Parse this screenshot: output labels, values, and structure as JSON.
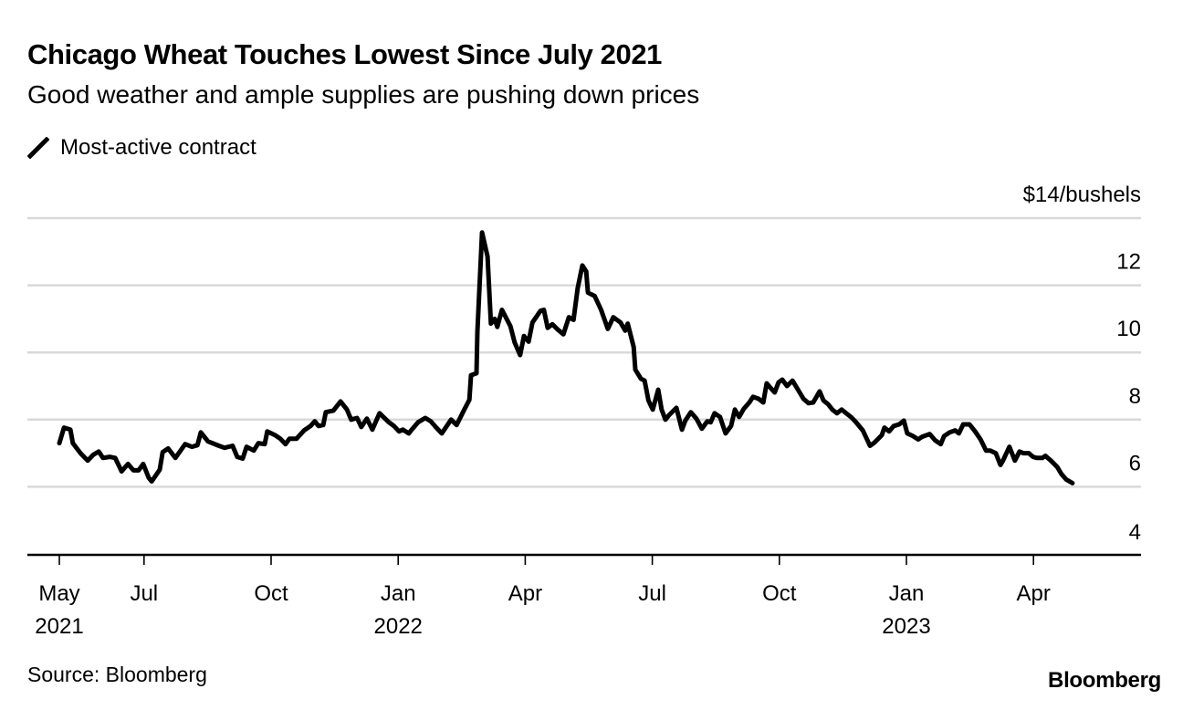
{
  "header": {
    "title": "Chicago Wheat Touches Lowest Since July 2021",
    "subtitle": "Good weather and ample supplies are pushing down prices"
  },
  "legend": {
    "items": [
      {
        "label": "Most-active contract",
        "icon": "line-swatch-icon",
        "color": "#000000"
      }
    ]
  },
  "footer": {
    "source": "Source: Bloomberg",
    "brand": "Bloomberg"
  },
  "colors": {
    "line": "#000000",
    "grid": "#d9d9d9",
    "axis": "#000000",
    "background": "#ffffff"
  },
  "chart_data": {
    "type": "line",
    "title": "Chicago Wheat Touches Lowest Since July 2021",
    "subtitle": "Good weather and ample supplies are pushing down prices",
    "xlabel": "",
    "ylabel": "$/bushels",
    "y_unit_label": "$14/bushels",
    "ylim": [
      4,
      14
    ],
    "yticks": [
      4,
      6,
      8,
      10,
      12,
      14
    ],
    "ytick_labels": [
      "4",
      "6",
      "8",
      "10",
      "12",
      "$14/bushels"
    ],
    "xlim_months": [
      -0.75,
      25.5
    ],
    "xticks": [
      {
        "month": 0,
        "label": "May",
        "year": "2021"
      },
      {
        "month": 2,
        "label": "Jul",
        "year": ""
      },
      {
        "month": 5,
        "label": "Oct",
        "year": ""
      },
      {
        "month": 8,
        "label": "Jan",
        "year": "2022"
      },
      {
        "month": 11,
        "label": "Apr",
        "year": ""
      },
      {
        "month": 14,
        "label": "Jul",
        "year": ""
      },
      {
        "month": 17,
        "label": "Oct",
        "year": ""
      },
      {
        "month": 20,
        "label": "Jan",
        "year": "2023"
      },
      {
        "month": 23,
        "label": "Apr",
        "year": ""
      }
    ],
    "grid": true,
    "legend_position": "top-left",
    "x_note": "x values are months elapsed since May 1, 2021",
    "series": [
      {
        "name": "Most-active contract",
        "x": [
          0.0,
          0.11,
          0.26,
          0.32,
          0.5,
          0.67,
          0.8,
          0.93,
          1.03,
          1.19,
          1.32,
          1.47,
          1.62,
          1.75,
          1.87,
          1.98,
          2.11,
          2.18,
          2.37,
          2.44,
          2.57,
          2.74,
          2.97,
          3.13,
          3.26,
          3.34,
          3.51,
          3.77,
          3.9,
          4.09,
          4.2,
          4.33,
          4.42,
          4.59,
          4.7,
          4.85,
          4.91,
          5.09,
          5.22,
          5.34,
          5.43,
          5.6,
          5.78,
          5.93,
          6.03,
          6.12,
          6.23,
          6.29,
          6.47,
          6.64,
          6.79,
          6.89,
          7.03,
          7.13,
          7.26,
          7.39,
          7.56,
          7.78,
          7.9,
          8.02,
          8.11,
          8.25,
          8.34,
          8.47,
          8.64,
          8.77,
          8.9,
          9.03,
          9.25,
          9.38,
          9.55,
          9.68,
          9.72,
          9.85,
          9.87,
          9.98,
          10.11,
          10.19,
          10.28,
          10.34,
          10.45,
          10.56,
          10.65,
          10.75,
          10.88,
          10.97,
          11.08,
          11.17,
          11.36,
          11.44,
          11.53,
          11.64,
          11.77,
          11.9,
          12.03,
          12.14,
          12.24,
          12.35,
          12.44,
          12.48,
          12.64,
          12.79,
          12.95,
          13.08,
          13.25,
          13.36,
          13.42,
          13.56,
          13.6,
          13.73,
          13.82,
          13.91,
          14.01,
          14.14,
          14.22,
          14.31,
          14.4,
          14.57,
          14.7,
          14.78,
          14.91,
          15.04,
          15.17,
          15.3,
          15.38,
          15.47,
          15.6,
          15.73,
          15.86,
          15.95,
          16.05,
          16.16,
          16.29,
          16.38,
          16.51,
          16.62,
          16.7,
          16.83,
          16.89,
          16.98,
          17.07,
          17.18,
          17.31,
          17.44,
          17.57,
          17.69,
          17.8,
          17.95,
          18.04,
          18.15,
          18.25,
          18.36,
          18.47,
          18.69,
          18.79,
          18.97,
          19.14,
          19.25,
          19.42,
          19.48,
          19.59,
          19.7,
          19.83,
          19.94,
          20.02,
          20.15,
          20.28,
          20.37,
          20.55,
          20.68,
          20.81,
          20.89,
          21.02,
          21.15,
          21.24,
          21.34,
          21.49,
          21.62,
          21.75,
          21.88,
          21.98,
          22.11,
          22.22,
          22.28,
          22.43,
          22.56,
          22.67,
          22.76,
          22.89,
          22.99,
          23.08,
          23.21,
          23.28,
          23.41,
          23.56,
          23.66,
          23.77,
          23.92
        ],
        "y": [
          7.3,
          7.76,
          7.7,
          7.3,
          7.0,
          6.78,
          6.95,
          7.05,
          6.86,
          6.89,
          6.86,
          6.46,
          6.68,
          6.49,
          6.49,
          6.68,
          6.27,
          6.16,
          6.51,
          7.03,
          7.14,
          6.86,
          7.27,
          7.19,
          7.24,
          7.62,
          7.35,
          7.22,
          7.16,
          7.22,
          6.89,
          6.84,
          7.19,
          7.08,
          7.3,
          7.27,
          7.65,
          7.54,
          7.43,
          7.27,
          7.43,
          7.43,
          7.68,
          7.81,
          7.95,
          7.81,
          7.84,
          8.22,
          8.27,
          8.54,
          8.3,
          8.0,
          8.05,
          7.78,
          8.03,
          7.7,
          8.19,
          7.92,
          7.81,
          7.65,
          7.7,
          7.59,
          7.73,
          7.92,
          8.05,
          7.95,
          7.76,
          7.59,
          8.0,
          7.84,
          8.27,
          8.59,
          9.32,
          9.38,
          10.62,
          13.57,
          12.86,
          10.86,
          11.0,
          10.76,
          11.27,
          11.0,
          10.78,
          10.3,
          9.92,
          10.49,
          10.32,
          10.89,
          11.24,
          11.27,
          10.73,
          10.84,
          10.68,
          10.54,
          11.05,
          10.97,
          11.92,
          12.59,
          12.41,
          11.78,
          11.68,
          11.27,
          10.7,
          11.05,
          10.89,
          10.65,
          10.86,
          10.16,
          9.49,
          9.22,
          9.16,
          8.57,
          8.3,
          8.89,
          8.3,
          8.0,
          8.14,
          8.35,
          7.7,
          7.97,
          8.22,
          8.03,
          7.73,
          7.95,
          7.92,
          8.19,
          8.08,
          7.59,
          7.81,
          8.3,
          8.08,
          8.32,
          8.51,
          8.68,
          8.62,
          8.51,
          9.08,
          8.89,
          8.81,
          9.11,
          9.19,
          9.0,
          9.16,
          8.89,
          8.62,
          8.49,
          8.51,
          8.84,
          8.57,
          8.46,
          8.3,
          8.19,
          8.3,
          8.08,
          7.95,
          7.68,
          7.22,
          7.32,
          7.54,
          7.76,
          7.65,
          7.81,
          7.86,
          7.97,
          7.59,
          7.51,
          7.41,
          7.49,
          7.57,
          7.38,
          7.27,
          7.51,
          7.62,
          7.68,
          7.59,
          7.86,
          7.86,
          7.65,
          7.41,
          7.08,
          7.08,
          7.0,
          6.65,
          6.78,
          7.19,
          6.78,
          7.05,
          7.0,
          7.0,
          6.89,
          6.86,
          6.86,
          6.92,
          6.78,
          6.59,
          6.38,
          6.22,
          6.11
        ]
      }
    ]
  }
}
